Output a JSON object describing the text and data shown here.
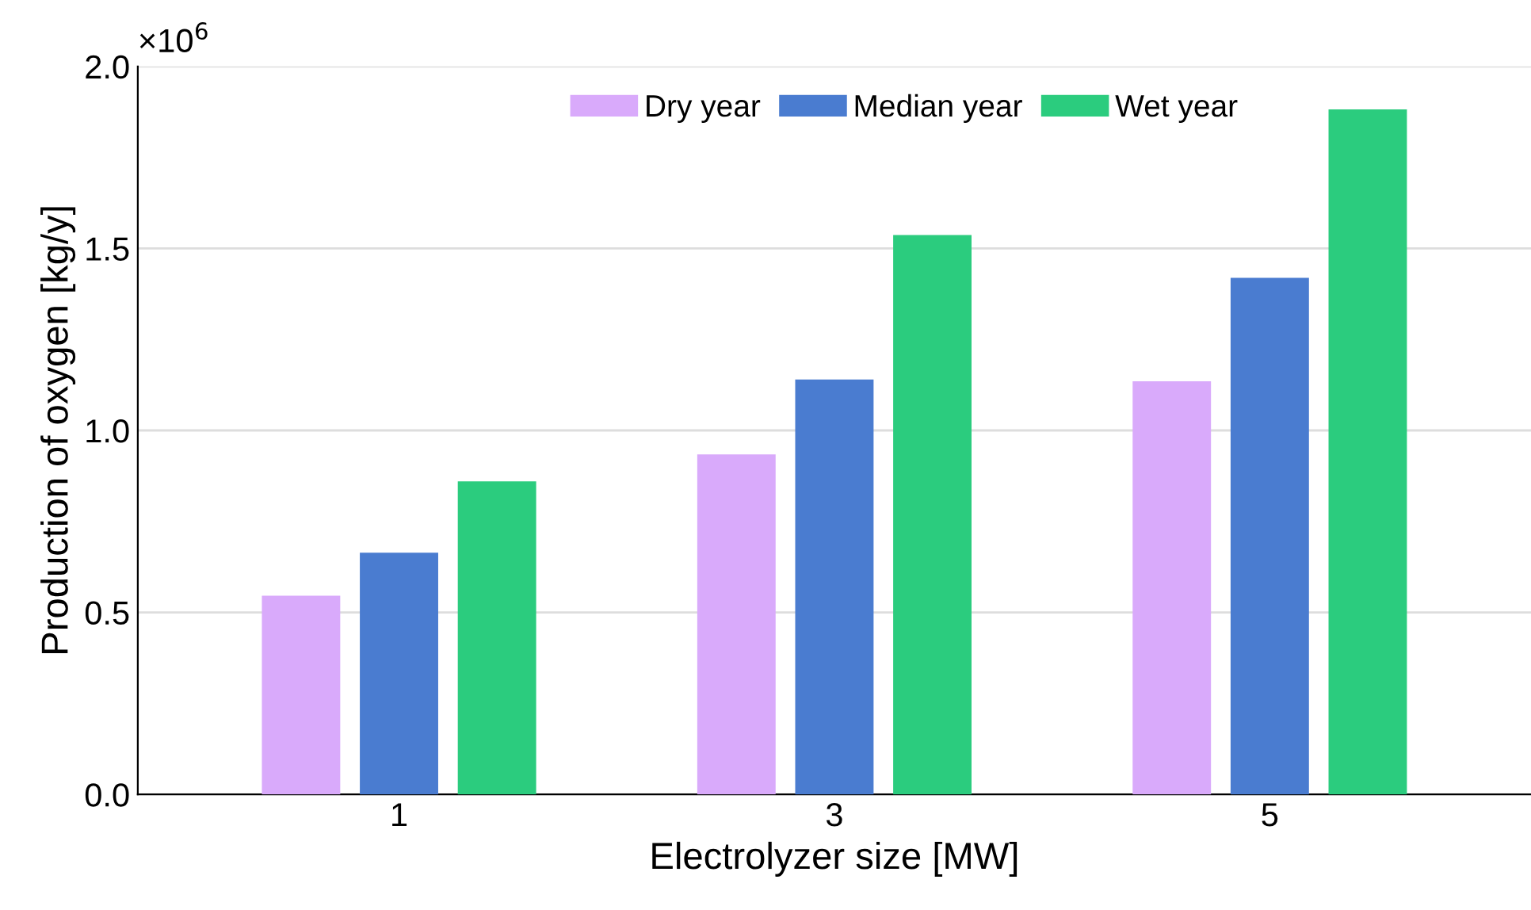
{
  "chart_data": {
    "type": "bar",
    "xlabel": "Electrolyzer size [MW]",
    "ylabel": "Production of oxygen [kg/y]",
    "categories": [
      "1",
      "3",
      "5"
    ],
    "series": [
      {
        "name": "Dry year",
        "color": "#d9aafb",
        "values": [
          0.546,
          0.934,
          1.135
        ]
      },
      {
        "name": "Median year",
        "color": "#4a7cd0",
        "values": [
          0.664,
          1.14,
          1.419
        ]
      },
      {
        "name": "Wet year",
        "color": "#2bcc7e",
        "values": [
          0.86,
          1.537,
          1.882
        ]
      }
    ],
    "ylim": [
      0,
      2.0
    ],
    "yticks": [
      {
        "value": 0,
        "label": "0.0"
      },
      0.5,
      {
        "value": 1.0,
        "label": "1.0"
      },
      1.5,
      {
        "value": 2.0,
        "label": "2.0"
      }
    ],
    "annotations": [
      "×10$^{6}$"
    ],
    "grid": "y",
    "legend": "top"
  }
}
